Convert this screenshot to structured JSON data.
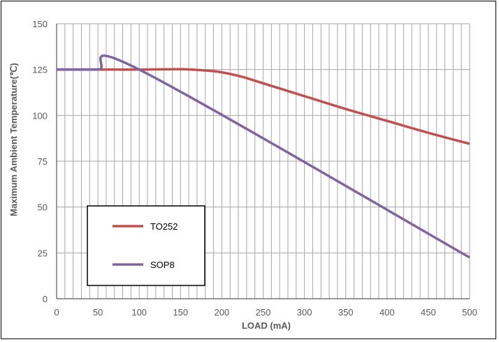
{
  "chart_data": {
    "type": "line",
    "xlabel": "LOAD (mA)",
    "ylabel": "Maximum Ambient Temperature(℃)",
    "xlim": [
      0,
      500
    ],
    "ylim": [
      0,
      150
    ],
    "x_ticks": [
      "0",
      "50",
      "100",
      "150",
      "200",
      "250",
      "300",
      "350",
      "400",
      "450",
      "500"
    ],
    "y_ticks": [
      "0",
      "25",
      "50",
      "75",
      "100",
      "125",
      "150"
    ],
    "grid": true,
    "legend_position": "lower-left",
    "series": [
      {
        "name": "TO252",
        "color": "#c0504d",
        "x": [
          0,
          50,
          100,
          150,
          180,
          200,
          225,
          250,
          300,
          350,
          400,
          450,
          500
        ],
        "y": [
          125,
          125,
          125,
          125.2,
          124.5,
          123.5,
          121,
          117.5,
          110.5,
          103.5,
          97,
          90.5,
          84.5
        ]
      },
      {
        "name": "SOP8",
        "color": "#8064a2",
        "x": [
          0,
          50,
          100,
          500
        ],
        "y": [
          125,
          125,
          125,
          22.5
        ]
      }
    ]
  }
}
